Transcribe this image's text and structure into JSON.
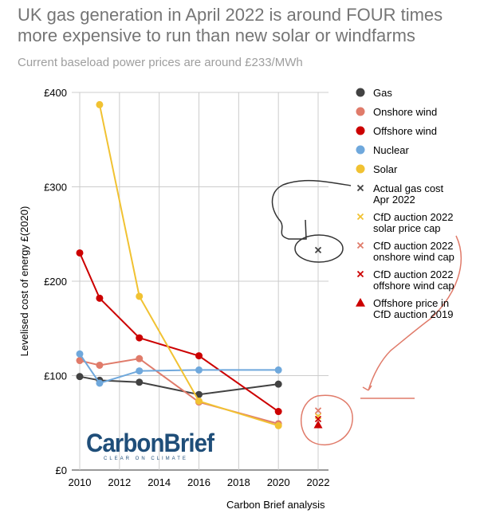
{
  "title": "UK gas generation in April 2022 is around FOUR times more expensive to run than new solar or windfarms",
  "subtitle": "Current baseload power prices are around £233/MWh",
  "source": "Carbon Brief analysis",
  "logo": {
    "main": "CarbonBrief",
    "sub": "CLEAR ON CLIMATE"
  },
  "chart_data": {
    "type": "line",
    "title": "UK gas generation in April 2022 is around FOUR times more expensive to run than new solar or windfarms",
    "subtitle": "Current baseload power prices are around £233/MWh",
    "xlabel": "",
    "ylabel": "Levelised cost of energy £(2020)",
    "xlim": [
      2010,
      2022.5
    ],
    "ylim": [
      0,
      400
    ],
    "x_ticks": [
      2010,
      2012,
      2014,
      2016,
      2018,
      2020,
      2022
    ],
    "y_ticks": [
      {
        "value": 0,
        "label": "£0"
      },
      {
        "value": 100,
        "label": "£100"
      },
      {
        "value": 200,
        "label": "£200"
      },
      {
        "value": 300,
        "label": "£300"
      },
      {
        "value": 400,
        "label": "£400"
      }
    ],
    "grid": true,
    "series": [
      {
        "name": "Gas",
        "color": "#424242",
        "x": [
          2010,
          2011,
          2013,
          2016,
          2020
        ],
        "values": [
          99,
          95,
          93,
          80,
          91
        ]
      },
      {
        "name": "Onshore wind",
        "color": "#e07b6a",
        "x": [
          2010,
          2011,
          2013,
          2016,
          2020
        ],
        "values": [
          116,
          111,
          118,
          72,
          49
        ]
      },
      {
        "name": "Offshore wind",
        "color": "#cc0000",
        "x": [
          2010,
          2011,
          2013,
          2016,
          2020
        ],
        "values": [
          230,
          182,
          140,
          121,
          62
        ]
      },
      {
        "name": "Nuclear",
        "color": "#6fa8dc",
        "x": [
          2010,
          2011,
          2013,
          2016,
          2020
        ],
        "values": [
          123,
          92,
          105,
          106,
          106
        ]
      },
      {
        "name": "Solar",
        "color": "#f1c232",
        "x": [
          2011,
          2013,
          2016,
          2020
        ],
        "values": [
          387,
          184,
          73,
          47
        ]
      }
    ],
    "markers": [
      {
        "name": "Actual gas cost Apr 2022",
        "color": "#424242",
        "shape": "x",
        "x": 2022,
        "value": 233
      },
      {
        "name": "CfD auction 2022 solar price cap",
        "color": "#f1c232",
        "shape": "x",
        "x": 2022,
        "value": 57
      },
      {
        "name": "CfD auction 2022 onshore wind cap",
        "color": "#e07b6a",
        "shape": "x",
        "x": 2022,
        "value": 63
      },
      {
        "name": "CfD auction 2022 offshore wind cap",
        "color": "#cc0000",
        "shape": "x",
        "x": 2022,
        "value": 54
      },
      {
        "name": "Offshore price in CfD auction 2019",
        "color": "#cc0000",
        "shape": "triangle",
        "x": 2022,
        "value": 48
      }
    ],
    "legend": {
      "position": "right",
      "entries": [
        {
          "lines": [
            "Gas"
          ],
          "color": "#424242",
          "shape": "circle"
        },
        {
          "lines": [
            "Onshore wind"
          ],
          "color": "#e07b6a",
          "shape": "circle"
        },
        {
          "lines": [
            "Offshore wind"
          ],
          "color": "#cc0000",
          "shape": "circle"
        },
        {
          "lines": [
            "Nuclear"
          ],
          "color": "#6fa8dc",
          "shape": "circle"
        },
        {
          "lines": [
            "Solar"
          ],
          "color": "#f1c232",
          "shape": "circle"
        },
        {
          "lines": [
            "Actual gas cost",
            "Apr 2022"
          ],
          "color": "#424242",
          "shape": "x"
        },
        {
          "lines": [
            "CfD auction 2022",
            "solar price cap"
          ],
          "color": "#f1c232",
          "shape": "x"
        },
        {
          "lines": [
            "CfD auction 2022",
            "onshore wind cap"
          ],
          "color": "#e07b6a",
          "shape": "x"
        },
        {
          "lines": [
            "CfD auction 2022",
            "offshore wind cap"
          ],
          "color": "#cc0000",
          "shape": "x"
        },
        {
          "lines": [
            "Offshore price in",
            "CfD auction 2019"
          ],
          "color": "#cc0000",
          "shape": "triangle"
        }
      ]
    }
  }
}
